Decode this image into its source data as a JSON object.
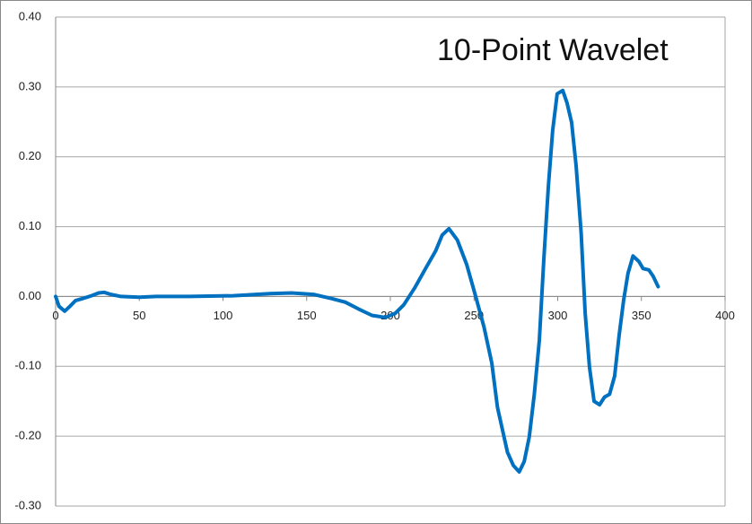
{
  "chart_data": {
    "type": "line",
    "title": "10-Point  Wavelet",
    "x": [
      0,
      2,
      5.4,
      8.6,
      11.8,
      16,
      21.4,
      25.7,
      29,
      33,
      39,
      50,
      60,
      80,
      106,
      128,
      141,
      154,
      165,
      173,
      181,
      189,
      197,
      203,
      208,
      214.5,
      221,
      227,
      231,
      235,
      240,
      245.6,
      251,
      256,
      260.6,
      264,
      270,
      273.5,
      277,
      280,
      283,
      286,
      289,
      291.7,
      294.4,
      297,
      299.7,
      303,
      305.6,
      308.3,
      311,
      314,
      316.4,
      319,
      321.7,
      325,
      328,
      331,
      334,
      336.7,
      339.4,
      342,
      345,
      348.5,
      351,
      354.4,
      357,
      360
    ],
    "series": [
      {
        "name": "10-Point Wavelet",
        "color": "#0070c0",
        "values": [
          0,
          -0.014,
          -0.021,
          -0.014,
          -0.006,
          -0.003,
          0.001,
          0.005,
          0.006,
          0.003,
          0,
          -0.001,
          0,
          0,
          0.001,
          0.004,
          0.005,
          0.003,
          -0.003,
          -0.008,
          -0.018,
          -0.027,
          -0.03,
          -0.024,
          -0.012,
          0.012,
          0.04,
          0.065,
          0.088,
          0.097,
          0.081,
          0.046,
          0,
          -0.044,
          -0.095,
          -0.159,
          -0.223,
          -0.242,
          -0.251,
          -0.236,
          -0.201,
          -0.14,
          -0.063,
          0.053,
          0.158,
          0.238,
          0.29,
          0.295,
          0.277,
          0.249,
          0.187,
          0.091,
          -0.024,
          -0.101,
          -0.15,
          -0.155,
          -0.144,
          -0.14,
          -0.114,
          -0.056,
          -0.005,
          0.033,
          0.058,
          0.05,
          0.04,
          0.038,
          0.029,
          0.014
        ]
      }
    ],
    "xlim": [
      0,
      400
    ],
    "xticks": [
      0,
      50,
      100,
      150,
      200,
      250,
      300,
      350,
      400
    ],
    "ylim": [
      -0.3,
      0.4
    ],
    "yticks": [
      {
        "value": -0.3,
        "label": "-0.30"
      },
      {
        "value": -0.2,
        "label": "-0.20"
      },
      {
        "value": -0.1,
        "label": "-0.10"
      },
      {
        "value": 0,
        "label": "0.00"
      },
      {
        "value": 0.1,
        "label": "0.10"
      },
      {
        "value": 0.2,
        "label": "0.20"
      },
      {
        "value": 0.3,
        "label": "0.30"
      },
      {
        "value": 0.4,
        "label": "0.40"
      }
    ],
    "grid": true
  }
}
